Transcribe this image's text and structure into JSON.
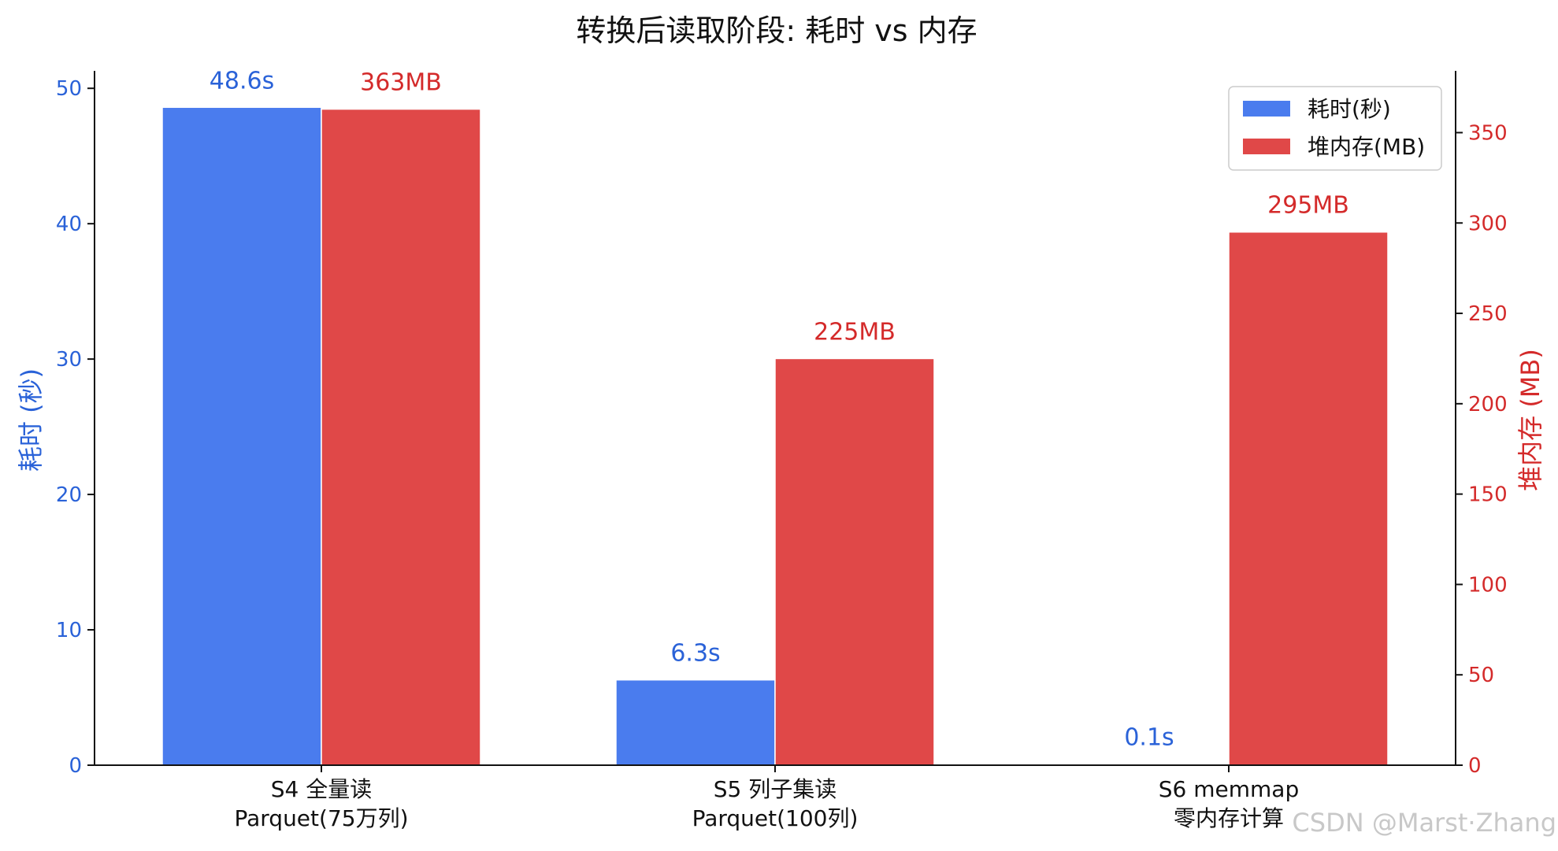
{
  "chart_data": {
    "type": "bar",
    "title": "转换后读取阶段: 耗时 vs 内存",
    "categories": [
      [
        "S4 全量读",
        "Parquet(75万列)"
      ],
      [
        "S5 列子集读",
        "Parquet(100列)"
      ],
      [
        "S6 memmap",
        "零内存计算"
      ]
    ],
    "series": [
      {
        "name": "耗时(秒)",
        "axis": "left",
        "color": "#4a7cee",
        "values": [
          48.6,
          6.3,
          0.1
        ],
        "data_labels": [
          "48.6s",
          "6.3s",
          "0.1s"
        ]
      },
      {
        "name": "堆内存(MB)",
        "axis": "right",
        "color": "#e04848",
        "values": [
          363,
          225,
          295
        ],
        "data_labels": [
          "363MB",
          "225MB",
          "295MB"
        ]
      }
    ],
    "ylabel_left": "耗时 (秒)",
    "ylabel_right": "堆内存 (MB)",
    "ylim_left": [
      0,
      51
    ],
    "ylim_right": [
      0,
      382
    ],
    "yticks_left": [
      0,
      10,
      20,
      30,
      40,
      50
    ],
    "yticks_right": [
      0,
      50,
      100,
      150,
      200,
      250,
      300,
      350
    ],
    "left_axis_color": "#2a62d8",
    "right_axis_color": "#d42a2a",
    "grid": false,
    "legend_position": "top-right"
  },
  "watermark": "CSDN @Marst·Zhang"
}
